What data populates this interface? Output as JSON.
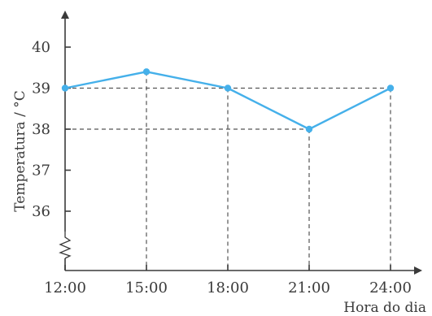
{
  "chart_data": {
    "type": "line",
    "x_tick_labels": [
      "12:00",
      "15:00",
      "18:00",
      "21:00",
      "24:00"
    ],
    "y_tick_labels": [
      "36",
      "37",
      "38",
      "39",
      "40"
    ],
    "series": [
      {
        "values": [
          39,
          39.4,
          39,
          38,
          39
        ]
      }
    ],
    "xlabel": "Hora do dia",
    "ylabel": "Temperatura / °C",
    "ylim": [
      35,
      40.5
    ],
    "y_axis_break": true,
    "grid": false,
    "guides": [
      {
        "y": 39,
        "from_index": 0,
        "to_index": 4
      },
      {
        "y": 38,
        "from_index": 0,
        "to_index": 3
      }
    ],
    "colors": {
      "series": "#45b0ea",
      "axis": "#3a3a3a",
      "guide": "#555555"
    }
  }
}
